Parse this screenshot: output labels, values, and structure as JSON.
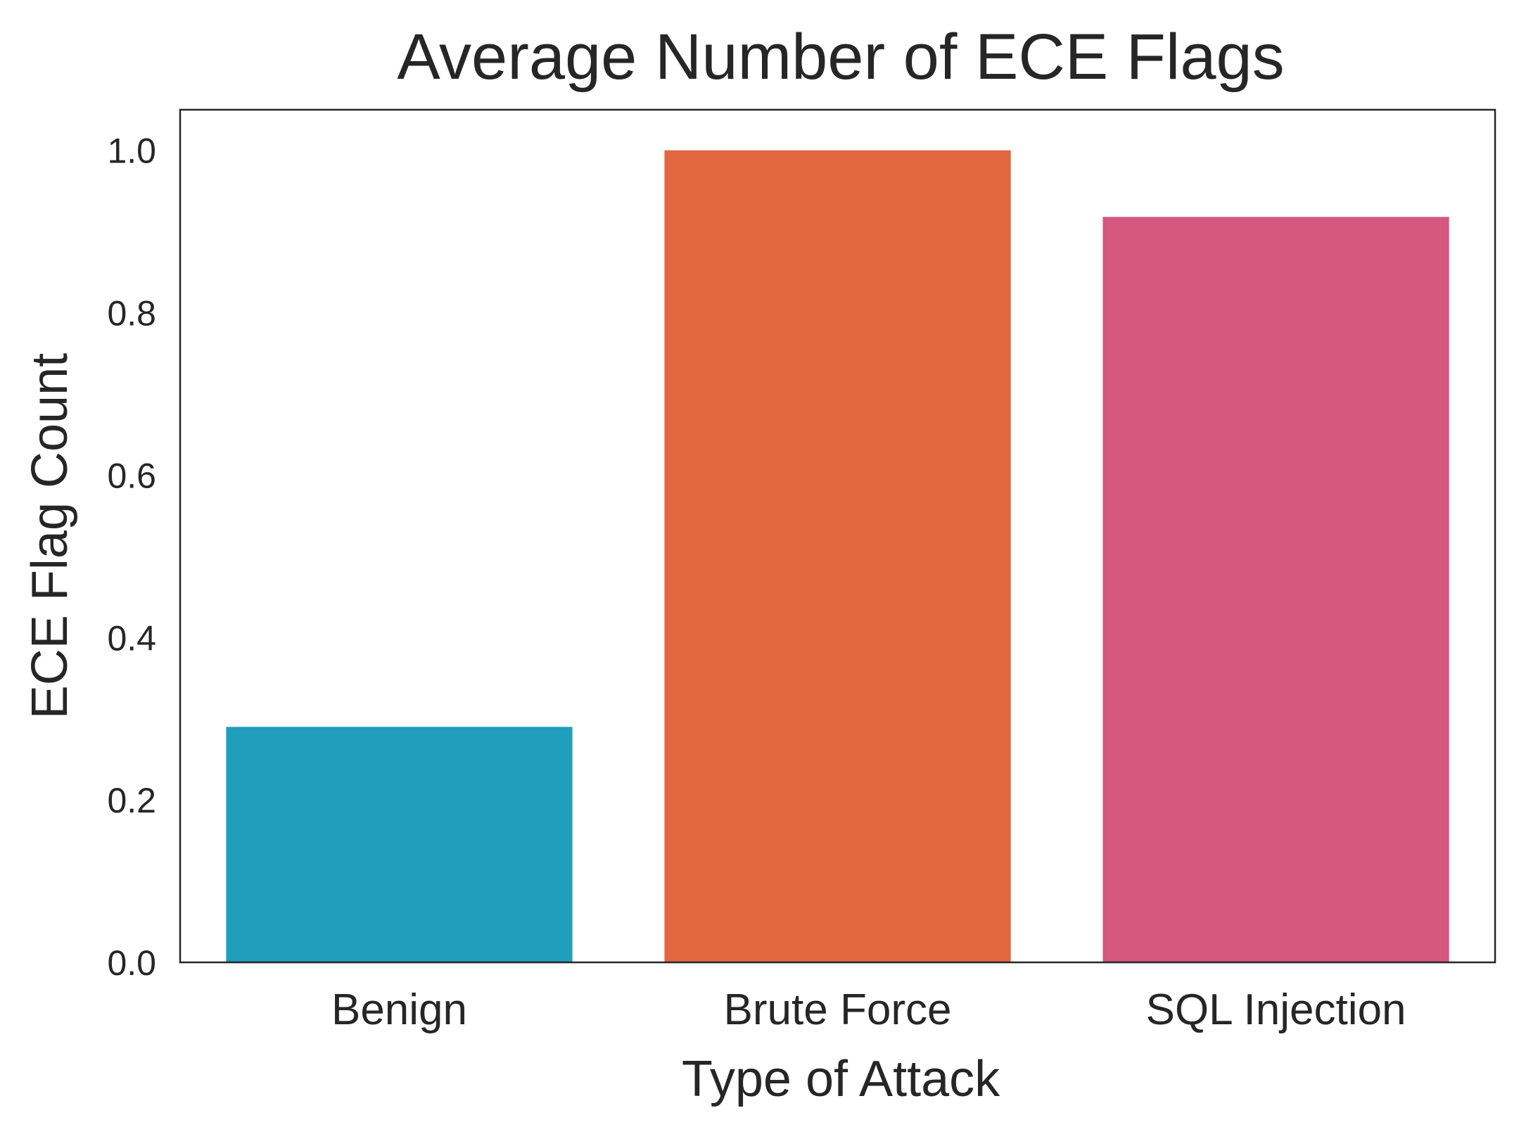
{
  "chart_data": {
    "type": "bar",
    "title": "Average Number of ECE Flags",
    "xlabel": "Type of Attack",
    "ylabel": "ECE Flag Count",
    "categories": [
      "Benign",
      "Brute Force",
      "SQL Injection"
    ],
    "values": [
      0.29,
      1.0,
      0.918
    ],
    "ylim": [
      0,
      1.05
    ],
    "yticks": [
      "0.0",
      "0.2",
      "0.4",
      "0.6",
      "0.8",
      "1.0"
    ],
    "colors": [
      "#219ebc",
      "#e26640",
      "#d5567f"
    ],
    "grid": false,
    "legend": "none"
  }
}
